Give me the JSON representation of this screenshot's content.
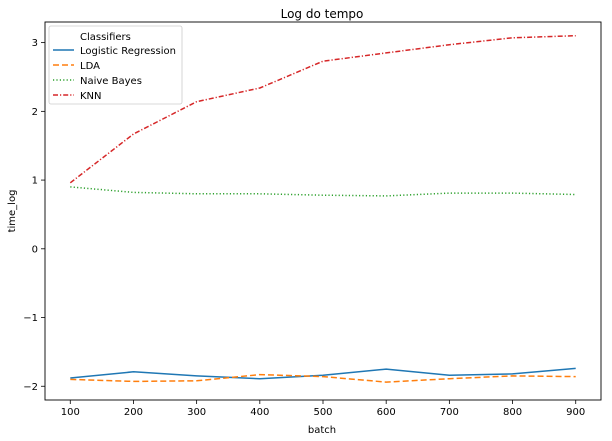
{
  "chart_data": {
    "type": "line",
    "title": "Log do tempo",
    "xlabel": "batch",
    "ylabel": "time_log",
    "x": [
      100,
      200,
      300,
      400,
      500,
      600,
      700,
      800,
      900
    ],
    "xticks": [
      100,
      200,
      300,
      400,
      500,
      600,
      700,
      800,
      900
    ],
    "xlim": [
      60,
      940
    ],
    "yticks": [
      -2,
      -1,
      0,
      1,
      2,
      3
    ],
    "ytick_labels": [
      "−2",
      "−1",
      "0",
      "1",
      "2",
      "3"
    ],
    "ylim": [
      -2.2,
      3.3
    ],
    "grid": false,
    "legend": {
      "title": "Classifiers",
      "position": "top-left"
    },
    "series": [
      {
        "name": "Logistic Regression",
        "color": "#1f77b4",
        "linestyle": "solid",
        "values": [
          -1.88,
          -1.79,
          -1.85,
          -1.89,
          -1.84,
          -1.75,
          -1.84,
          -1.82,
          -1.74
        ]
      },
      {
        "name": "LDA",
        "color": "#ff7f0e",
        "linestyle": "dashed",
        "values": [
          -1.9,
          -1.93,
          -1.92,
          -1.83,
          -1.86,
          -1.94,
          -1.89,
          -1.85,
          -1.86
        ]
      },
      {
        "name": "Naive Bayes",
        "color": "#2ca02c",
        "linestyle": "dotted",
        "values": [
          0.9,
          0.82,
          0.8,
          0.8,
          0.78,
          0.77,
          0.81,
          0.81,
          0.79
        ]
      },
      {
        "name": "KNN",
        "color": "#d62728",
        "linestyle": "dashdot",
        "values": [
          0.96,
          1.67,
          2.14,
          2.34,
          2.73,
          2.85,
          2.97,
          3.07,
          3.1
        ]
      }
    ]
  }
}
